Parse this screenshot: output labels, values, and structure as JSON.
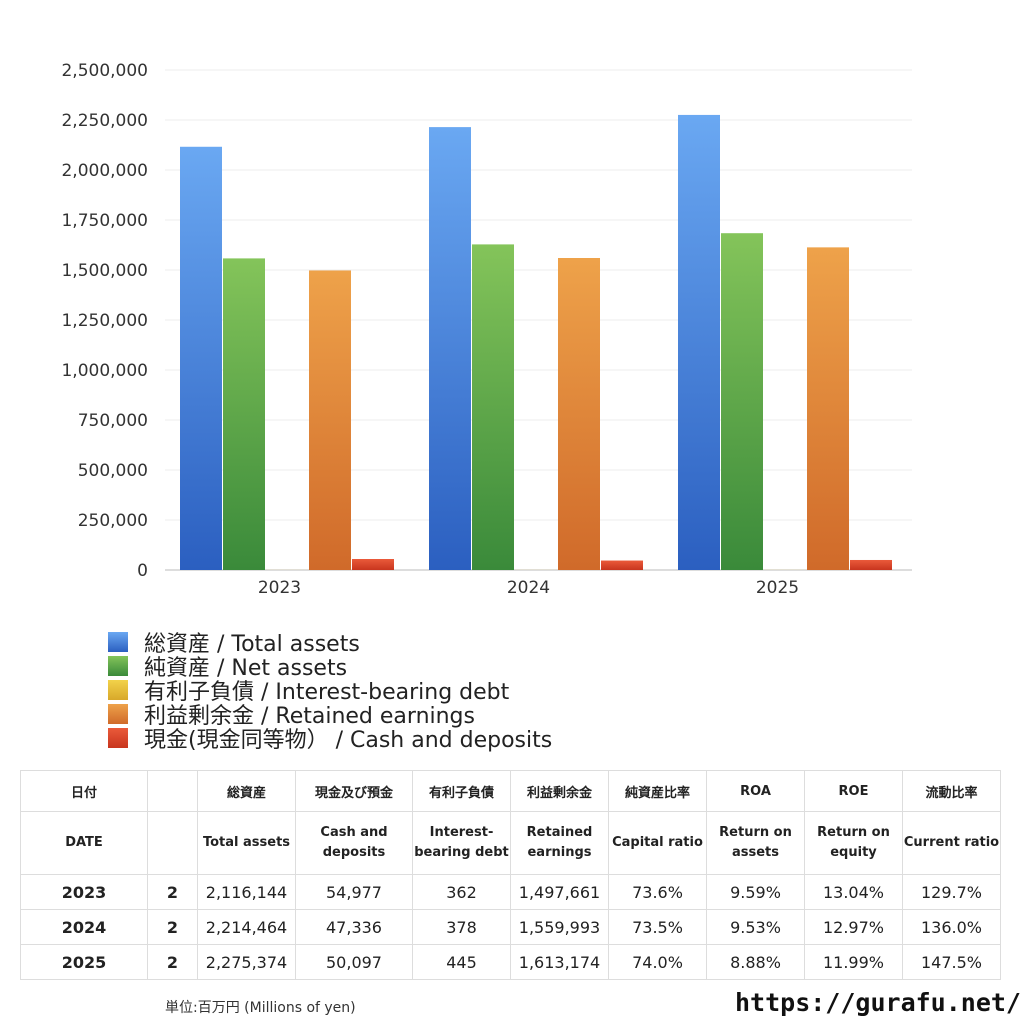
{
  "chart_data": {
    "type": "bar",
    "categories": [
      "2023",
      "2024",
      "2025"
    ],
    "series": [
      {
        "name": "総資産 / Total assets",
        "values": [
          2116144,
          2214464,
          2275374
        ],
        "color_top": "#6aa8f2",
        "color_bottom": "#2b5fc0"
      },
      {
        "name": "純資産 / Net assets",
        "values": [
          1558000,
          1628000,
          1684000
        ],
        "color_top": "#84c45a",
        "color_bottom": "#3a8a3a"
      },
      {
        "name": "有利子負債 / Interest-bearing debt",
        "values": [
          362,
          378,
          445
        ],
        "color_top": "#f2d24a",
        "color_bottom": "#d8a82a"
      },
      {
        "name": "利益剰余金 / Retained earnings",
        "values": [
          1497661,
          1559993,
          1613174
        ],
        "color_top": "#eea24a",
        "color_bottom": "#d06a2a"
      },
      {
        "name": "現金(現金同等物） /  Cash and deposits",
        "values": [
          54977,
          47336,
          50097
        ],
        "color_top": "#ea5a3a",
        "color_bottom": "#c8351e"
      }
    ],
    "yticks": [
      "0",
      "250,000",
      "500,000",
      "750,000",
      "1,000,000",
      "1,250,000",
      "1,500,000",
      "1,750,000",
      "2,000,000",
      "2,250,000",
      "2,500,000"
    ],
    "ylim": [
      0,
      2500000
    ],
    "grid": true,
    "legend_position": "bottom"
  },
  "table": {
    "header_jp": [
      "日付",
      "",
      "総資産",
      "現金及び預金",
      "有利子負債",
      "利益剰余金",
      "純資産比率",
      "ROA",
      "ROE",
      "流動比率"
    ],
    "header_en": [
      "DATE",
      "",
      "Total assets",
      "Cash and deposits",
      "Interest-bearing debt",
      "Retained earnings",
      "Capital ratio",
      "Return on assets",
      "Return on equity",
      "Current ratio"
    ],
    "rows": [
      [
        "2023",
        "2",
        "2,116,144",
        "54,977",
        "362",
        "1,497,661",
        "73.6%",
        "9.59%",
        "13.04%",
        "129.7%"
      ],
      [
        "2024",
        "2",
        "2,214,464",
        "47,336",
        "378",
        "1,559,993",
        "73.5%",
        "9.53%",
        "12.97%",
        "136.0%"
      ],
      [
        "2025",
        "2",
        "2,275,374",
        "50,097",
        "445",
        "1,613,174",
        "74.0%",
        "8.88%",
        "11.99%",
        "147.5%"
      ]
    ]
  },
  "footer": {
    "unit": "単位:百万円 (Millions of yen)",
    "site": "https://gurafu.net/"
  }
}
